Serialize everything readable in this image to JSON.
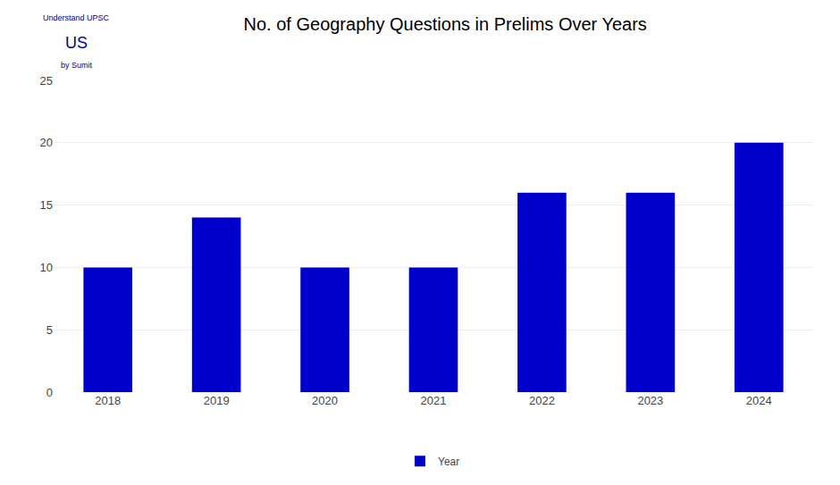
{
  "chart_data": {
    "type": "bar",
    "title": "No. of Geography Questions in Prelims Over Years",
    "categories": [
      "2018",
      "2019",
      "2020",
      "2021",
      "2022",
      "2023",
      "2024"
    ],
    "series": [
      {
        "name": "Year",
        "color": "#0000CD",
        "values": [
          10,
          14,
          10,
          10,
          16,
          16,
          20
        ]
      }
    ],
    "ylim": [
      0,
      25
    ],
    "yticks": [
      0,
      5,
      10,
      15,
      20,
      25
    ],
    "grid": true,
    "legend": "bottom",
    "annotations": [
      "Understand UPSC",
      "US",
      "by Sumit"
    ]
  }
}
